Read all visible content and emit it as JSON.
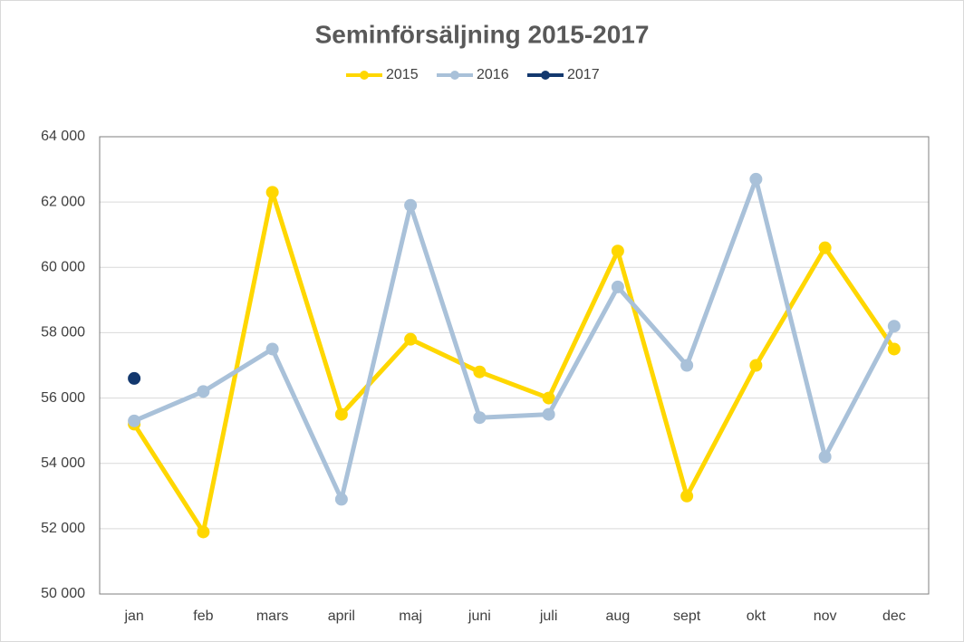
{
  "chart_data": {
    "type": "line",
    "title": "Seminförsäljning 2015-2017",
    "categories": [
      "jan",
      "feb",
      "mars",
      "april",
      "maj",
      "juni",
      "juli",
      "aug",
      "sept",
      "okt",
      "nov",
      "dec"
    ],
    "series": [
      {
        "name": "2015",
        "color": "#ffd700",
        "values": [
          55200,
          51900,
          62300,
          55500,
          57800,
          56800,
          56000,
          60500,
          53000,
          57000,
          60600,
          57500
        ]
      },
      {
        "name": "2016",
        "color": "#a9c1d9",
        "values": [
          55300,
          56200,
          57500,
          52900,
          61900,
          55400,
          55500,
          59400,
          57000,
          62700,
          54200,
          58200
        ]
      },
      {
        "name": "2017",
        "color": "#13386e",
        "values": [
          56600,
          null,
          null,
          null,
          null,
          null,
          null,
          null,
          null,
          null,
          null,
          null
        ]
      }
    ],
    "ylim": [
      50000,
      64000
    ],
    "yticks": [
      {
        "value": 50000,
        "label": "50 000"
      },
      {
        "value": 52000,
        "label": "52 000"
      },
      {
        "value": 54000,
        "label": "54 000"
      },
      {
        "value": 56000,
        "label": "56 000"
      },
      {
        "value": 58000,
        "label": "58 000"
      },
      {
        "value": 60000,
        "label": "60 000"
      },
      {
        "value": 62000,
        "label": "62 000"
      },
      {
        "value": 64000,
        "label": "64 000"
      }
    ],
    "grid": true,
    "legend": "top"
  }
}
